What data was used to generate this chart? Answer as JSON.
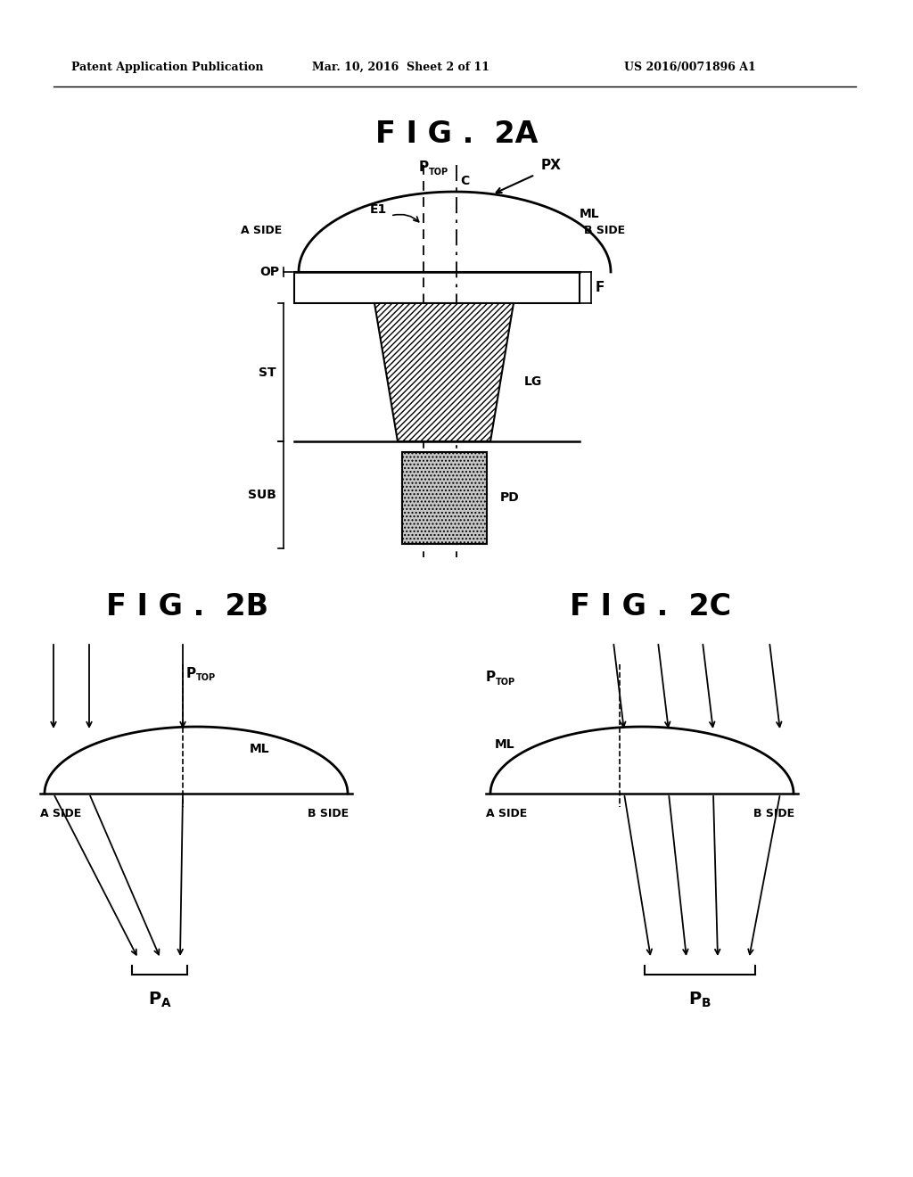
{
  "bg_color": "#ffffff",
  "header_left": "Patent Application Publication",
  "header_mid": "Mar. 10, 2016  Sheet 2 of 11",
  "header_right": "US 2016/0071896 A1",
  "fig2a_title": "F I G .  2A",
  "fig2b_title": "F I G .  2B",
  "fig2c_title": "F I G .  2C",
  "line_color": "#000000"
}
